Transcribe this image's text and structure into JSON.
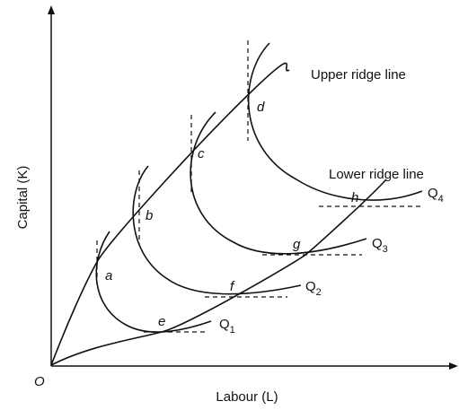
{
  "axes": {
    "y_label": "Capital (K)",
    "x_label": "Labour (L)",
    "origin": "O"
  },
  "ridge_lines": {
    "upper": "Upper ridge line",
    "lower": "Lower ridge line"
  },
  "points": [
    "a",
    "b",
    "c",
    "d",
    "e",
    "f",
    "g",
    "h"
  ],
  "isoquants": [
    {
      "letter": "Q",
      "sub": "1"
    },
    {
      "letter": "Q",
      "sub": "2"
    },
    {
      "letter": "Q",
      "sub": "3"
    },
    {
      "letter": "Q",
      "sub": "4"
    }
  ]
}
